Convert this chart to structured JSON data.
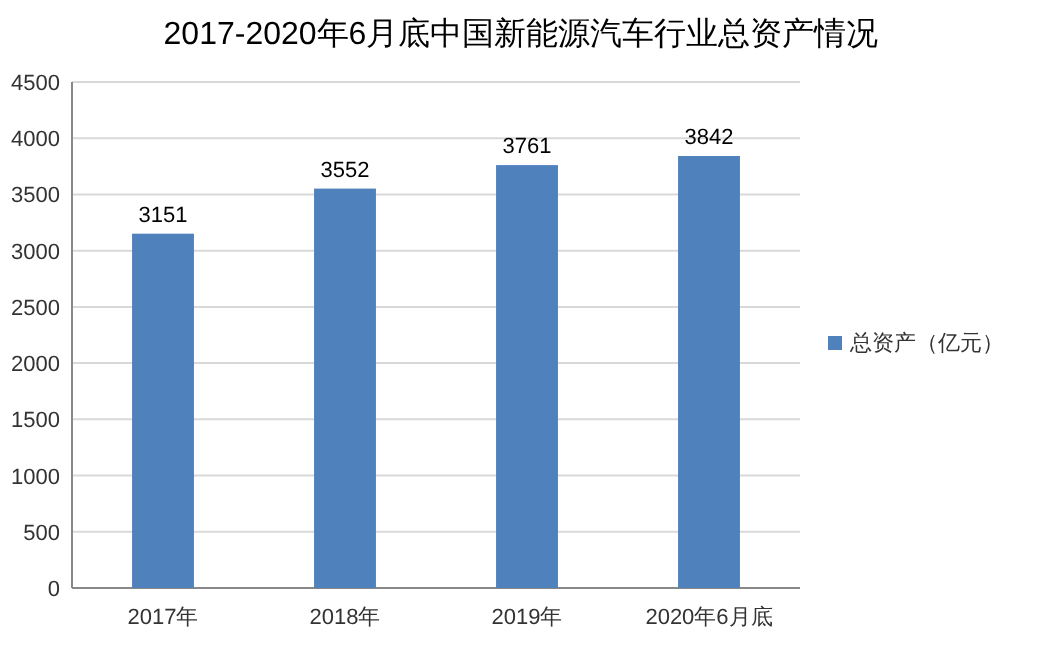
{
  "chart_data": {
    "type": "bar",
    "title": "2017-2020年6月底中国新能源汽车行业总资产情况",
    "categories": [
      "2017年",
      "2018年",
      "2019年",
      "2020年6月底"
    ],
    "series": [
      {
        "name": "总资产（亿元）",
        "color": "#4f81bd",
        "values": [
          3151,
          3552,
          3761,
          3842
        ]
      }
    ],
    "ylim": [
      0,
      4500
    ],
    "yticks": [
      0,
      500,
      1000,
      1500,
      2000,
      2500,
      3000,
      3500,
      4000,
      4500
    ],
    "grid": "y",
    "legend": "right",
    "data_labels": true
  }
}
